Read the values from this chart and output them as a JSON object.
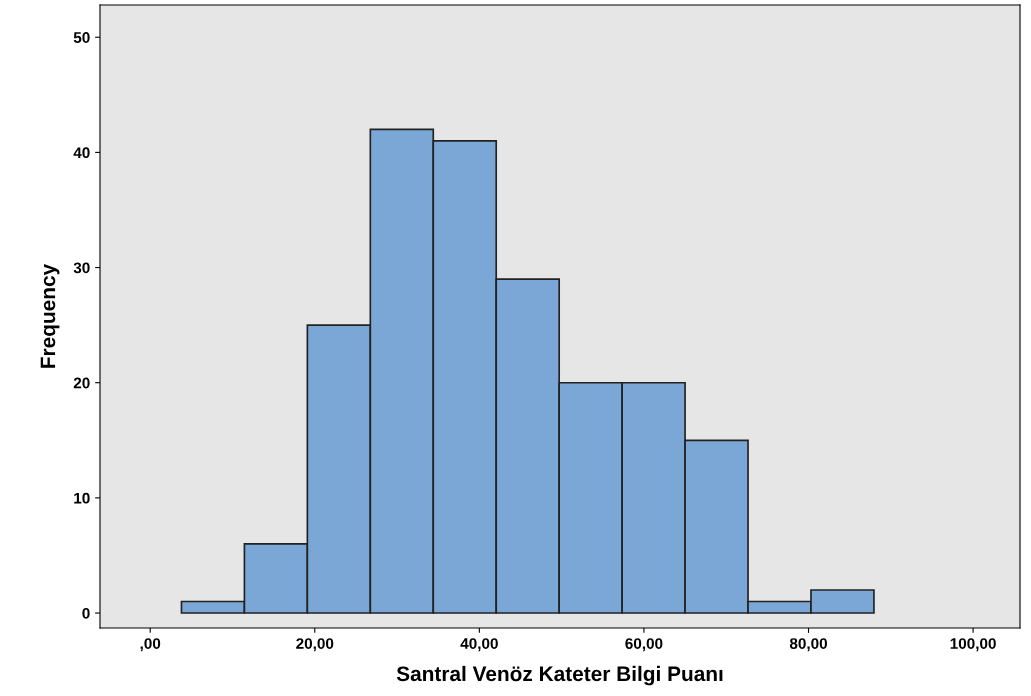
{
  "chart_data": {
    "type": "histogram",
    "xlabel": "Santral Venöz Kateter Bilgi Puanı",
    "ylabel": "Frequency",
    "bins": [
      3.8,
      11.45,
      19.1,
      26.75,
      34.4,
      42.05,
      49.7,
      57.35,
      65.0,
      72.65,
      80.3,
      87.95
    ],
    "values": [
      1,
      6,
      25,
      42,
      41,
      29,
      20,
      20,
      15,
      1,
      2
    ],
    "color": "#7ba7d6",
    "xlim": [
      -6.1,
      105.7
    ],
    "ylim": [
      -1.3,
      52.8
    ],
    "xticks": [
      {
        "value": 0,
        "label": ",00"
      },
      {
        "value": 20,
        "label": "20,00"
      },
      {
        "value": 40,
        "label": "40,00"
      },
      {
        "value": 60,
        "label": "60,00"
      },
      {
        "value": 80,
        "label": "80,00"
      },
      {
        "value": 100,
        "label": "100,00"
      }
    ],
    "yticks": [
      0,
      10,
      20,
      30,
      40,
      50
    ],
    "grid": false
  }
}
